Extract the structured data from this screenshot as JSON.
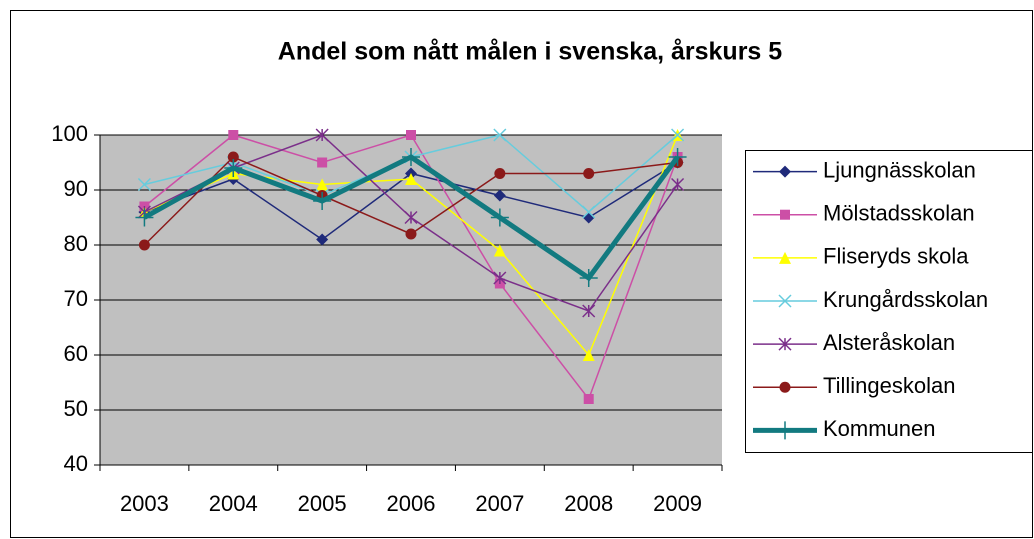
{
  "chart_data": {
    "type": "line",
    "title": "Andel som nått målen i svenska, årskurs 5",
    "categories": [
      "2003",
      "2004",
      "2005",
      "2006",
      "2007",
      "2008",
      "2009"
    ],
    "ylim": [
      40,
      100
    ],
    "yticks": [
      40,
      50,
      60,
      70,
      80,
      90,
      100
    ],
    "grid": true,
    "legend": "right",
    "plot_background": "#c0c0c0",
    "series": [
      {
        "name": "Ljungnässkolan",
        "color": "#1f2a7a",
        "marker": "diamond",
        "line_width": 1.5,
        "values": [
          86,
          92,
          81,
          93,
          89,
          85,
          95
        ]
      },
      {
        "name": "Mölstadsskolan",
        "color": "#cc4fa6",
        "marker": "square",
        "line_width": 1.5,
        "values": [
          87,
          100,
          95,
          100,
          73,
          52,
          96
        ]
      },
      {
        "name": "Fliseryds skola",
        "color": "#ffff00",
        "marker": "triangle",
        "line_width": 1.5,
        "values": [
          86,
          93,
          91,
          92,
          79,
          60,
          100
        ]
      },
      {
        "name": "Krungårdsskolan",
        "color": "#66ccdd",
        "marker": "x",
        "line_width": 1.5,
        "values": [
          91,
          95,
          89,
          96,
          100,
          86,
          100
        ]
      },
      {
        "name": "Alsteråskolan",
        "color": "#7b2f8a",
        "marker": "star",
        "line_width": 1.5,
        "values": [
          86,
          94,
          100,
          85,
          74,
          68,
          91
        ]
      },
      {
        "name": "Tillingeskolan",
        "color": "#8b1a1a",
        "marker": "circle",
        "line_width": 1.5,
        "values": [
          80,
          96,
          89,
          82,
          93,
          93,
          95
        ]
      },
      {
        "name": "Kommunen",
        "color": "#127a80",
        "marker": "plus",
        "line_width": 5,
        "values": [
          85,
          94,
          88,
          96,
          85,
          74,
          96
        ]
      }
    ]
  }
}
